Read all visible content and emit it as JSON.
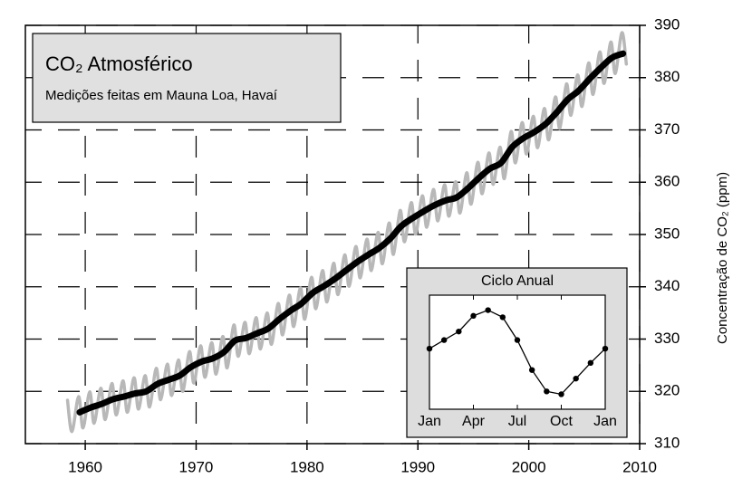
{
  "chart_data": [
    {
      "type": "line",
      "title": "CO₂ Atmosférico",
      "subtitle": "Medições feitas em Mauna Loa, Havaí",
      "y_label": "Concentração de CO₂ (ppm)",
      "xlim": [
        1954.6,
        2010
      ],
      "ylim": [
        310,
        390
      ],
      "xticks": [
        1960,
        1970,
        1980,
        1990,
        2000,
        2010
      ],
      "yticks": [
        310,
        320,
        330,
        340,
        350,
        360,
        370,
        380,
        390
      ],
      "grid": true,
      "series": [
        {
          "color": "#b8b8b8",
          "smooth": true,
          "x": [
            1958.4,
            1958.8,
            1959.4,
            1959.8,
            1960.4,
            1960.8,
            1961.4,
            1961.8,
            1962.4,
            1962.8,
            1963.4,
            1963.8,
            1964.4,
            1964.8,
            1965.4,
            1965.8,
            1966.4,
            1966.8,
            1967.4,
            1967.8,
            1968.4,
            1968.8,
            1969.4,
            1969.8,
            1970.4,
            1970.8,
            1971.4,
            1971.8,
            1972.4,
            1972.8,
            1973.4,
            1973.8,
            1974.4,
            1974.8,
            1975.4,
            1975.8,
            1976.4,
            1976.8,
            1977.4,
            1977.8,
            1978.4,
            1978.8,
            1979.4,
            1979.8,
            1980.4,
            1980.8,
            1981.4,
            1981.8,
            1982.4,
            1982.8,
            1983.4,
            1983.8,
            1984.4,
            1984.8,
            1985.4,
            1985.8,
            1986.4,
            1986.8,
            1987.4,
            1987.8,
            1988.4,
            1988.8,
            1989.4,
            1989.8,
            1990.4,
            1990.8,
            1991.4,
            1991.8,
            1992.4,
            1992.8,
            1993.4,
            1993.8,
            1994.4,
            1994.8,
            1995.4,
            1995.8,
            1996.4,
            1996.8,
            1997.4,
            1997.8,
            1998.4,
            1998.8,
            1999.4,
            1999.8,
            2000.4,
            2000.8,
            2001.4,
            2001.8,
            2002.4,
            2002.8,
            2003.4,
            2003.8,
            2004.4,
            2004.8,
            2005.4,
            2005.8,
            2006.4,
            2006.8,
            2007.4,
            2007.8,
            2008.4,
            2008.8
          ],
          "values": [
            318.3,
            312.3,
            319.0,
            313.0,
            319.9,
            313.9,
            320.6,
            314.6,
            321.5,
            315.5,
            322.0,
            316.0,
            322.6,
            316.6,
            323.0,
            317.0,
            324.4,
            318.4,
            325.2,
            319.2,
            326.0,
            320.0,
            327.6,
            321.6,
            328.7,
            322.7,
            329.3,
            323.3,
            330.5,
            324.5,
            332.7,
            326.7,
            333.2,
            327.2,
            334.1,
            328.1,
            335.0,
            329.0,
            336.8,
            330.8,
            338.4,
            332.4,
            339.8,
            333.8,
            341.8,
            335.8,
            343.1,
            337.1,
            344.5,
            338.5,
            346.1,
            340.1,
            347.7,
            341.7,
            349.1,
            343.1,
            350.4,
            344.4,
            352.2,
            346.2,
            354.6,
            348.6,
            356.1,
            350.1,
            357.4,
            351.4,
            358.6,
            352.6,
            359.5,
            353.5,
            360.1,
            354.1,
            361.8,
            355.8,
            363.8,
            357.8,
            365.6,
            359.6,
            366.7,
            360.7,
            369.7,
            363.7,
            371.4,
            365.4,
            372.6,
            366.6,
            374.1,
            368.1,
            376.3,
            370.3,
            378.8,
            372.8,
            380.5,
            374.5,
            382.8,
            376.8,
            384.9,
            378.9,
            386.8,
            380.8,
            388.6,
            382.6
          ]
        },
        {
          "color": "#000000",
          "smooth": false,
          "x": [
            1959.5,
            1960.5,
            1961.5,
            1962.5,
            1963.5,
            1964.5,
            1965.5,
            1966.5,
            1967.5,
            1968.5,
            1969.5,
            1970.5,
            1971.5,
            1972.5,
            1973.5,
            1974.5,
            1975.5,
            1976.5,
            1977.5,
            1978.5,
            1979.5,
            1980.5,
            1981.5,
            1982.5,
            1983.5,
            1984.5,
            1985.5,
            1986.5,
            1987.5,
            1988.5,
            1989.5,
            1990.5,
            1991.5,
            1992.5,
            1993.5,
            1994.5,
            1995.5,
            1996.5,
            1997.5,
            1998.5,
            1999.5,
            2000.5,
            2001.5,
            2002.5,
            2003.5,
            2004.5,
            2005.5,
            2006.5,
            2007.5,
            2008.5
          ],
          "values": [
            316.0,
            316.9,
            317.6,
            318.5,
            319.0,
            319.6,
            320.0,
            321.4,
            322.2,
            323.0,
            324.6,
            325.7,
            326.3,
            327.5,
            329.7,
            330.2,
            331.1,
            332.0,
            333.8,
            335.4,
            336.8,
            338.8,
            340.1,
            341.5,
            343.1,
            344.7,
            346.1,
            347.4,
            349.2,
            351.6,
            353.1,
            354.4,
            355.6,
            356.5,
            357.1,
            358.8,
            360.8,
            362.6,
            363.7,
            366.7,
            368.4,
            369.6,
            371.1,
            373.3,
            375.8,
            377.5,
            379.8,
            381.9,
            383.8,
            384.6
          ]
        }
      ]
    },
    {
      "type": "line",
      "title": "Ciclo Anual",
      "categories": [
        "Jan",
        null,
        null,
        "Apr",
        null,
        null,
        "Jul",
        null,
        null,
        "Oct",
        null,
        null,
        "Jan"
      ],
      "values": [
        0,
        0.6,
        1.2,
        2.3,
        2.7,
        2.2,
        0.6,
        -1.5,
        -3.0,
        -3.2,
        -2.1,
        -1.0,
        0
      ],
      "ylim": [
        -4.25,
        3.75
      ],
      "color": "#000000"
    }
  ]
}
